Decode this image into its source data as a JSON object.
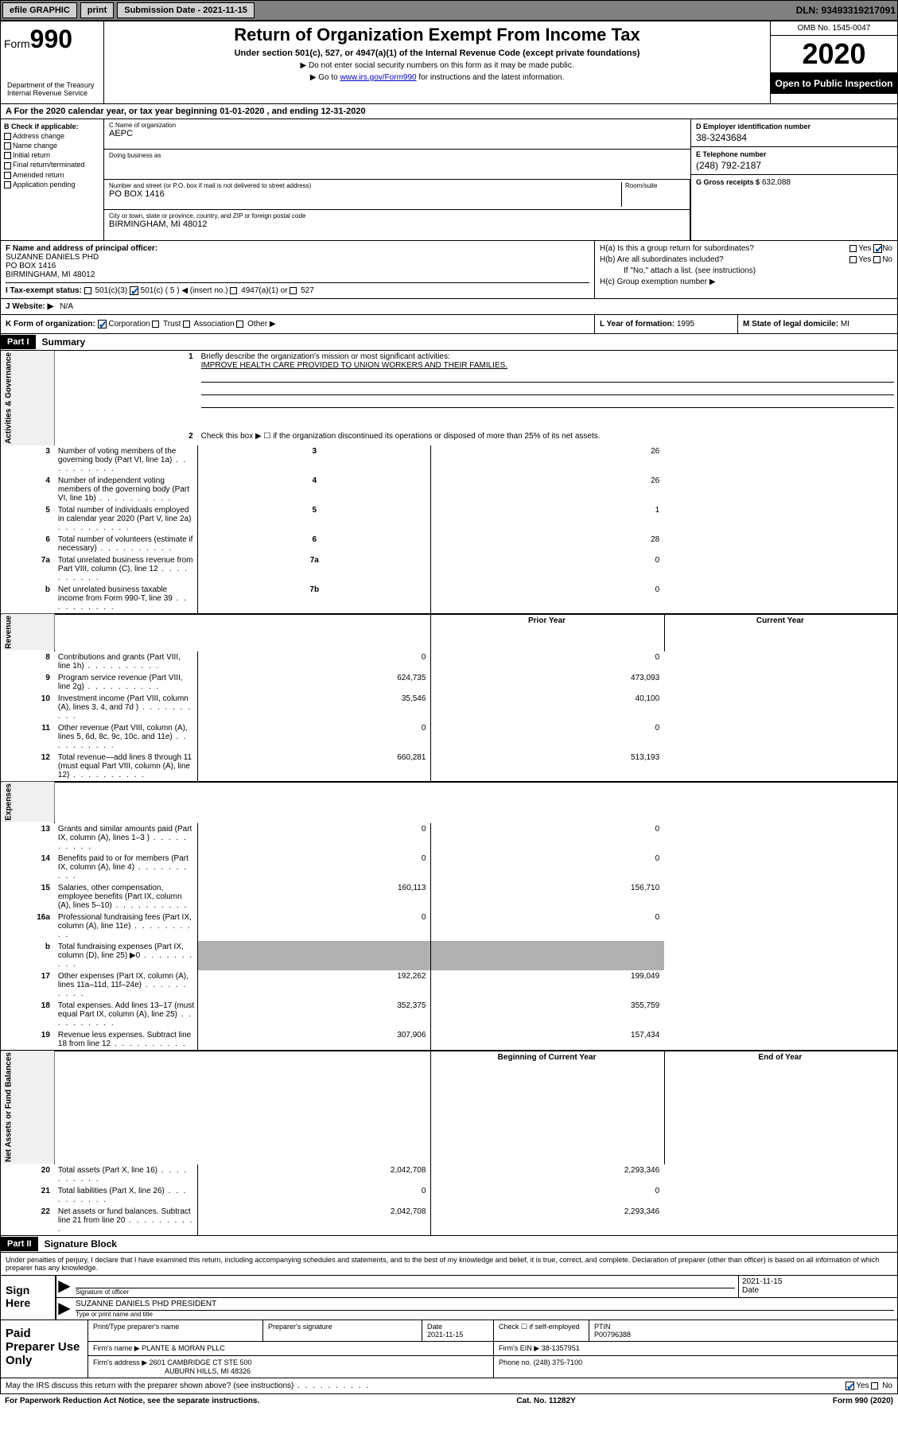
{
  "top_bar": {
    "efile_label": "efile GRAPHIC",
    "print_btn": "print",
    "submission_label": "Submission Date - 2021-11-15",
    "dln": "DLN: 93493319217091"
  },
  "header": {
    "form_label": "Form",
    "form_number": "990",
    "dept": "Department of the Treasury\nInternal Revenue Service",
    "title": "Return of Organization Exempt From Income Tax",
    "subtitle": "Under section 501(c), 527, or 4947(a)(1) of the Internal Revenue Code (except private foundations)",
    "note1": "▶ Do not enter social security numbers on this form as it may be made public.",
    "note2_pre": "▶ Go to ",
    "note2_link": "www.irs.gov/Form990",
    "note2_post": " for instructions and the latest information.",
    "omb": "OMB No. 1545-0047",
    "year": "2020",
    "open_public": "Open to Public Inspection"
  },
  "period": {
    "text": "For the 2020 calendar year, or tax year beginning 01-01-2020    , and ending 12-31-2020"
  },
  "section_b": {
    "header": "B Check if applicable:",
    "items": [
      "Address change",
      "Name change",
      "Initial return",
      "Final return/terminated",
      "Amended return",
      "Application pending"
    ]
  },
  "section_c": {
    "name_lbl": "C Name of organization",
    "name_val": "AEPC",
    "dba_lbl": "Doing business as",
    "dba_val": "",
    "street_lbl": "Number and street (or P.O. box if mail is not delivered to street address)",
    "room_lbl": "Room/suite",
    "street_val": "PO BOX 1416",
    "city_lbl": "City or town, state or province, country, and ZIP or foreign postal code",
    "city_val": "BIRMINGHAM, MI  48012"
  },
  "section_d": {
    "ein_lbl": "D Employer identification number",
    "ein_val": "38-3243684",
    "phone_lbl": "E Telephone number",
    "phone_val": "(248) 792-2187",
    "gross_lbl": "G Gross receipts $",
    "gross_val": "632,088"
  },
  "section_f": {
    "lbl": "F Name and address of principal officer:",
    "name": "SUZANNE DANIELS PHD",
    "addr1": "PO BOX 1416",
    "addr2": "BIRMINGHAM, MI  48012"
  },
  "section_h": {
    "ha": "H(a)  Is this a group return for subordinates?",
    "hb": "H(b)  Are all subordinates included?",
    "hb_note": "If \"No,\" attach a list. (see instructions)",
    "hc": "H(c)  Group exemption number ▶",
    "yes": "Yes",
    "no": "No"
  },
  "section_i": {
    "lbl": "I   Tax-exempt status:",
    "opts": [
      "501(c)(3)",
      "501(c) ( 5 ) ◀ (insert no.)",
      "4947(a)(1) or",
      "527"
    ]
  },
  "section_j": {
    "lbl": "J   Website: ▶",
    "val": "N/A"
  },
  "section_k": {
    "lbl": "K Form of organization:",
    "opts": [
      "Corporation",
      "Trust",
      "Association",
      "Other ▶"
    ]
  },
  "section_l": {
    "lbl": "L Year of formation:",
    "val": "1995"
  },
  "section_m": {
    "lbl": "M State of legal domicile:",
    "val": "MI"
  },
  "part1": {
    "hdr": "Part I",
    "title": "Summary",
    "line1_lbl": "Briefly describe the organization's mission or most significant activities:",
    "line1_val": "IMPROVE HEALTH CARE PROVIDED TO UNION WORKERS AND THEIR FAMILIES.",
    "line2": "Check this box ▶ ☐  if the organization discontinued its operations or disposed of more than 25% of its net assets.",
    "vtab_gov": "Activities & Governance",
    "vtab_rev": "Revenue",
    "vtab_exp": "Expenses",
    "vtab_net": "Net Assets or Fund Balances",
    "prior_hdr": "Prior Year",
    "current_hdr": "Current Year",
    "begin_hdr": "Beginning of Current Year",
    "end_hdr": "End of Year",
    "rows_gov": [
      {
        "n": "3",
        "t": "Number of voting members of the governing body (Part VI, line 1a)",
        "box": "3",
        "v": "26"
      },
      {
        "n": "4",
        "t": "Number of independent voting members of the governing body (Part VI, line 1b)",
        "box": "4",
        "v": "26"
      },
      {
        "n": "5",
        "t": "Total number of individuals employed in calendar year 2020 (Part V, line 2a)",
        "box": "5",
        "v": "1"
      },
      {
        "n": "6",
        "t": "Total number of volunteers (estimate if necessary)",
        "box": "6",
        "v": "28"
      },
      {
        "n": "7a",
        "t": "Total unrelated business revenue from Part VIII, column (C), line 12",
        "box": "7a",
        "v": "0"
      },
      {
        "n": "b",
        "t": "Net unrelated business taxable income from Form 990-T, line 39",
        "box": "7b",
        "v": "0"
      }
    ],
    "rows_rev": [
      {
        "n": "8",
        "t": "Contributions and grants (Part VIII, line 1h)",
        "p": "0",
        "c": "0"
      },
      {
        "n": "9",
        "t": "Program service revenue (Part VIII, line 2g)",
        "p": "624,735",
        "c": "473,093"
      },
      {
        "n": "10",
        "t": "Investment income (Part VIII, column (A), lines 3, 4, and 7d )",
        "p": "35,546",
        "c": "40,100"
      },
      {
        "n": "11",
        "t": "Other revenue (Part VIII, column (A), lines 5, 6d, 8c, 9c, 10c, and 11e)",
        "p": "0",
        "c": "0"
      },
      {
        "n": "12",
        "t": "Total revenue—add lines 8 through 11 (must equal Part VIII, column (A), line 12)",
        "p": "660,281",
        "c": "513,193"
      }
    ],
    "rows_exp": [
      {
        "n": "13",
        "t": "Grants and similar amounts paid (Part IX, column (A), lines 1–3 )",
        "p": "0",
        "c": "0"
      },
      {
        "n": "14",
        "t": "Benefits paid to or for members (Part IX, column (A), line 4)",
        "p": "0",
        "c": "0"
      },
      {
        "n": "15",
        "t": "Salaries, other compensation, employee benefits (Part IX, column (A), lines 5–10)",
        "p": "160,113",
        "c": "156,710"
      },
      {
        "n": "16a",
        "t": "Professional fundraising fees (Part IX, column (A), line 11e)",
        "p": "0",
        "c": "0"
      },
      {
        "n": "b",
        "t": "Total fundraising expenses (Part IX, column (D), line 25) ▶0",
        "p": "",
        "c": "",
        "shade": true
      },
      {
        "n": "17",
        "t": "Other expenses (Part IX, column (A), lines 11a–11d, 11f–24e)",
        "p": "192,262",
        "c": "199,049"
      },
      {
        "n": "18",
        "t": "Total expenses. Add lines 13–17 (must equal Part IX, column (A), line 25)",
        "p": "352,375",
        "c": "355,759"
      },
      {
        "n": "19",
        "t": "Revenue less expenses. Subtract line 18 from line 12",
        "p": "307,906",
        "c": "157,434"
      }
    ],
    "rows_net": [
      {
        "n": "20",
        "t": "Total assets (Part X, line 16)",
        "p": "2,042,708",
        "c": "2,293,346"
      },
      {
        "n": "21",
        "t": "Total liabilities (Part X, line 26)",
        "p": "0",
        "c": "0"
      },
      {
        "n": "22",
        "t": "Net assets or fund balances. Subtract line 21 from line 20",
        "p": "2,042,708",
        "c": "2,293,346"
      }
    ]
  },
  "part2": {
    "hdr": "Part II",
    "title": "Signature Block",
    "perjury": "Under penalties of perjury, I declare that I have examined this return, including accompanying schedules and statements, and to the best of my knowledge and belief, it is true, correct, and complete. Declaration of preparer (other than officer) is based on all information of which preparer has any knowledge.",
    "sign_here": "Sign Here",
    "sig_officer_lbl": "Signature of officer",
    "sig_date": "2021-11-15",
    "date_lbl": "Date",
    "officer_name": "SUZANNE DANIELS PHD  PRESIDENT",
    "officer_name_lbl": "Type or print name and title",
    "paid_prep": "Paid Preparer Use Only",
    "prep_name_lbl": "Print/Type preparer's name",
    "prep_sig_lbl": "Preparer's signature",
    "prep_date_lbl": "Date",
    "prep_date": "2021-11-15",
    "check_self": "Check ☐  if self-employed",
    "ptin_lbl": "PTIN",
    "ptin": "P00796388",
    "firm_name_lbl": "Firm's name     ▶",
    "firm_name": "PLANTE & MORAN PLLC",
    "firm_ein_lbl": "Firm's EIN ▶",
    "firm_ein": "38-1357951",
    "firm_addr_lbl": "Firm's address ▶",
    "firm_addr1": "2601 CAMBRIDGE CT STE 500",
    "firm_addr2": "AUBURN HILLS, MI  48326",
    "firm_phone_lbl": "Phone no.",
    "firm_phone": "(248) 375-7100",
    "irs_discuss": "May the IRS discuss this return with the preparer shown above? (see instructions)"
  },
  "footer": {
    "paperwork": "For Paperwork Reduction Act Notice, see the separate instructions.",
    "cat": "Cat. No. 11282Y",
    "form": "Form 990 (2020)"
  }
}
